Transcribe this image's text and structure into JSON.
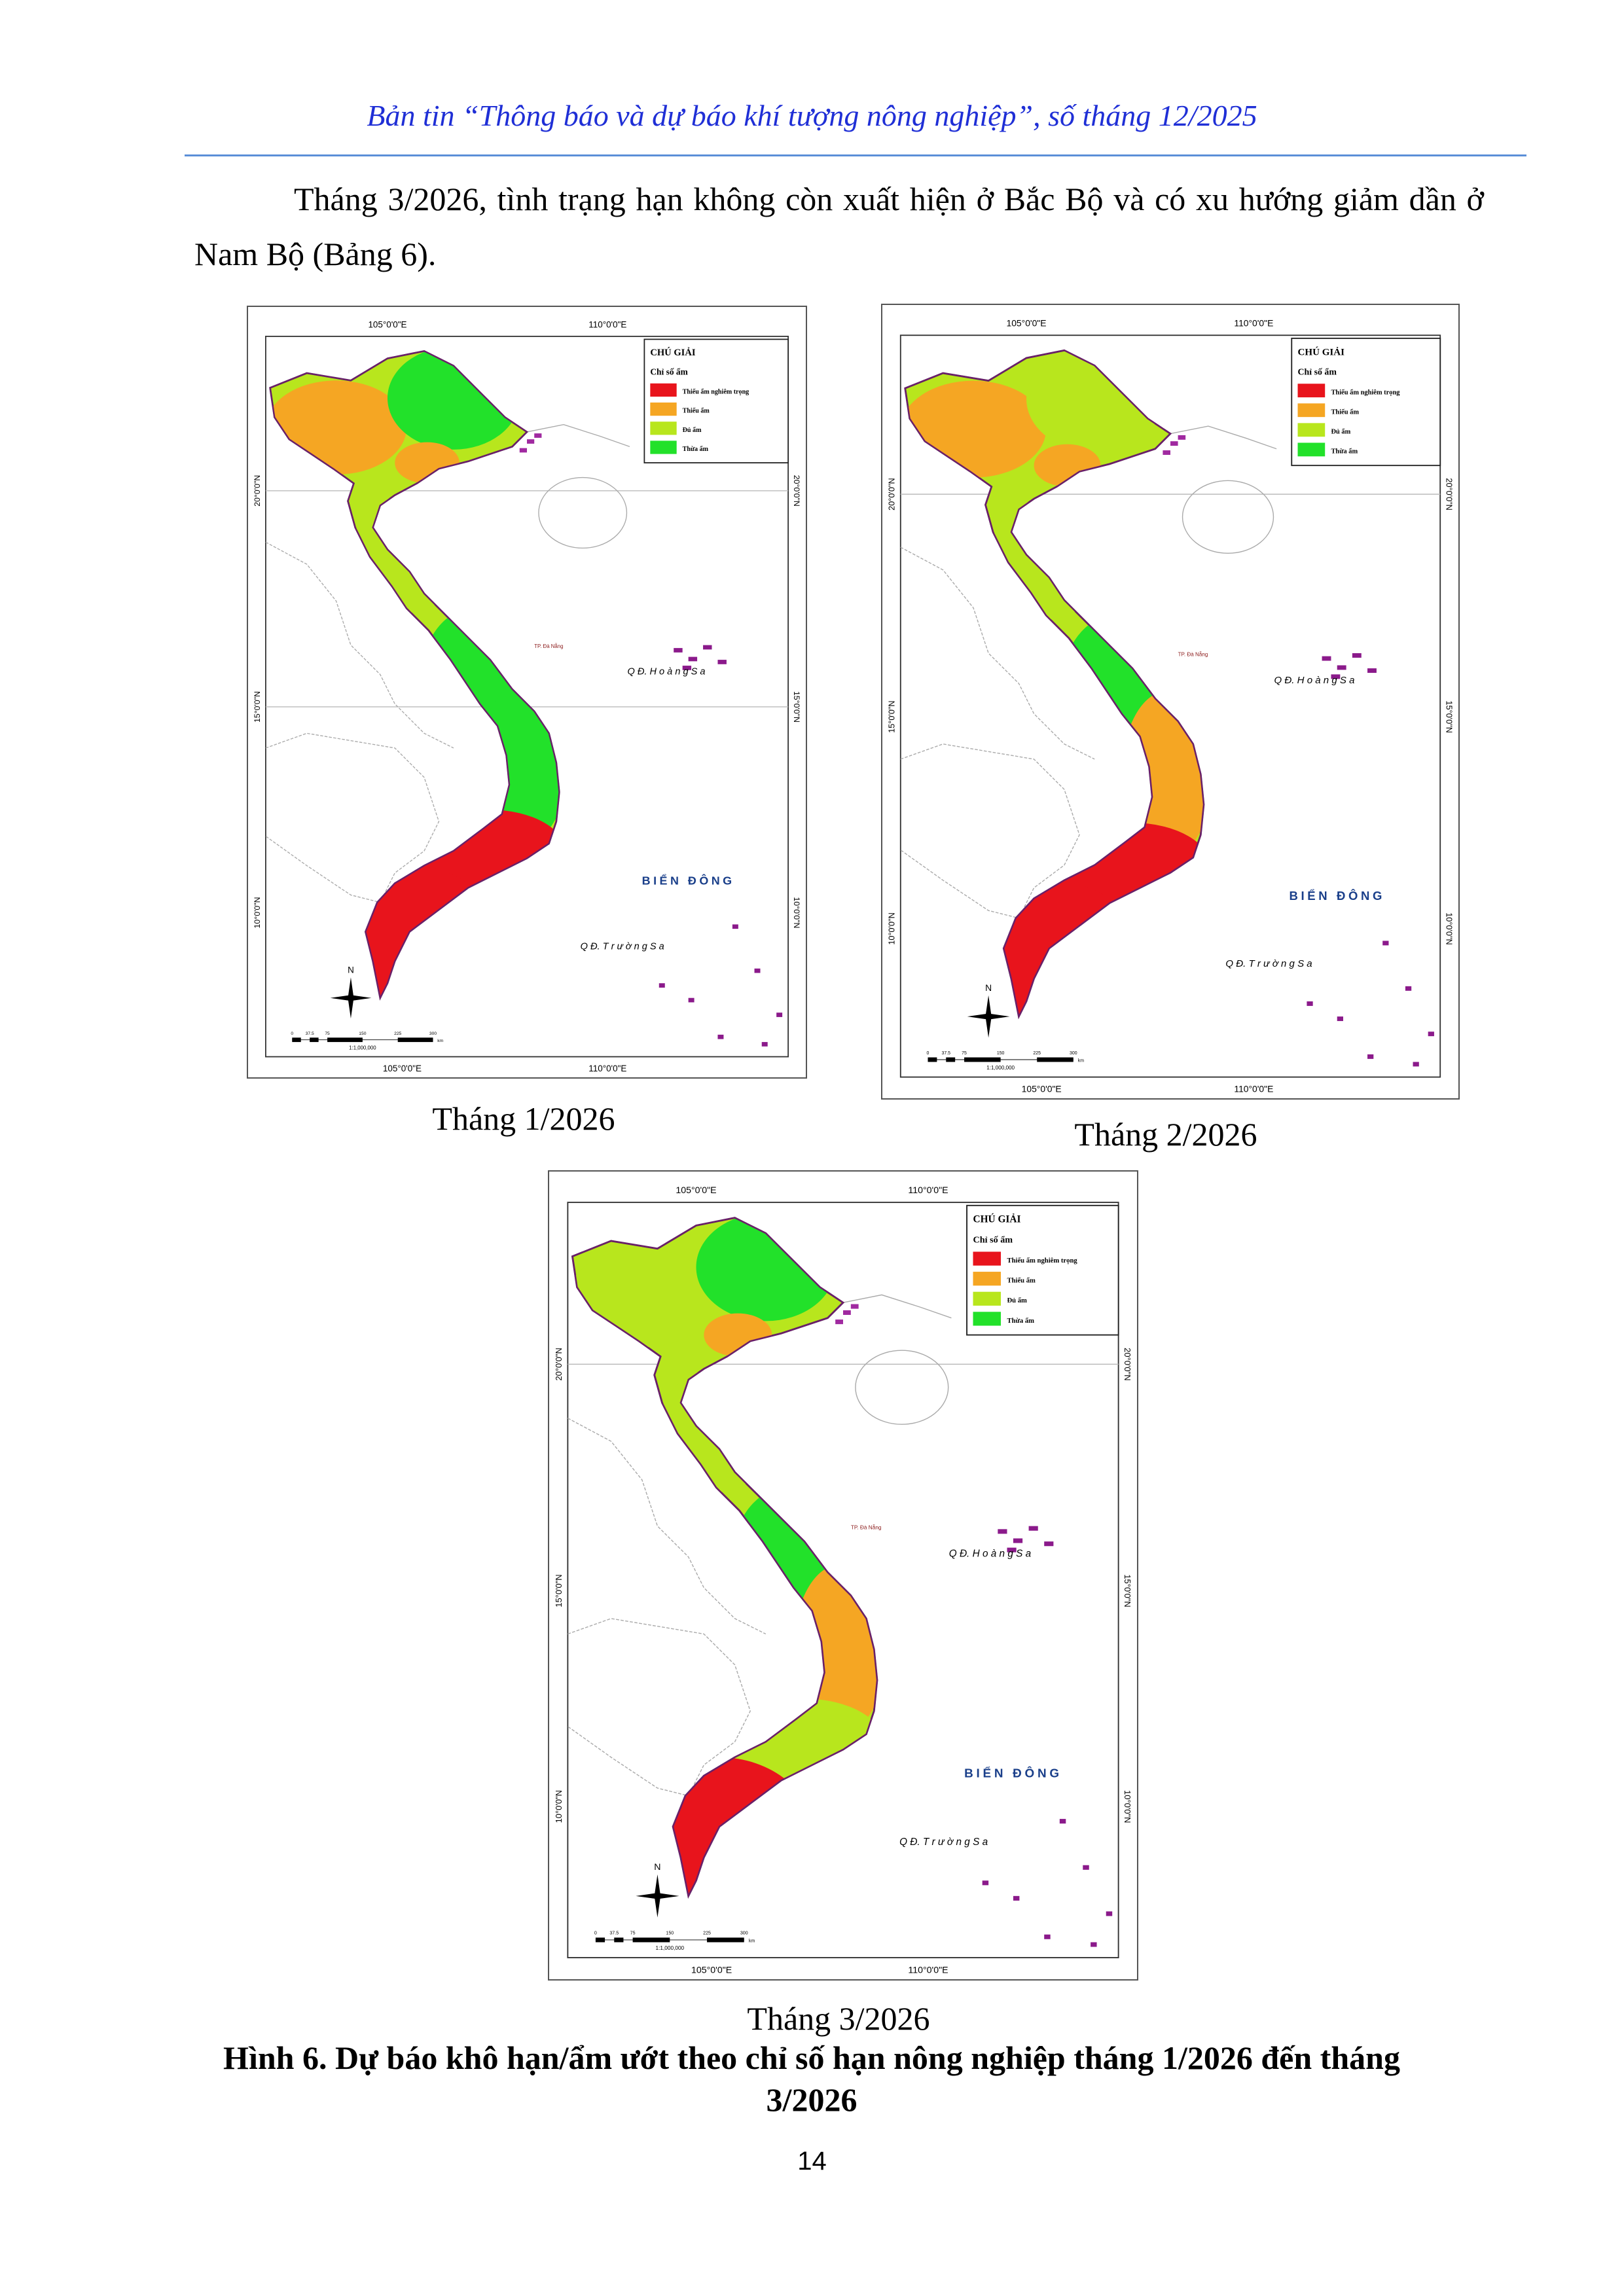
{
  "header": {
    "title": "Bản tin “Thông báo và dự báo khí tượng nông nghiệp”, số tháng 12/2025"
  },
  "paragraph": "Tháng 3/2026, tình trạng hạn không còn xuất hiện ở Bắc Bộ và có xu hướng giảm dần ở Nam Bộ (Bảng 6).",
  "map_common": {
    "lon_labels": [
      "105°0'0\"E",
      "110°0'0\"E"
    ],
    "lat_labels": [
      "20°0'0\"N",
      "15°0'0\"N",
      "10°0'0\"N"
    ],
    "legend": {
      "title": "CHÚ GIẢI",
      "subtitle": "Chỉ số ẩm",
      "items": [
        {
          "label": "Thiếu ẩm nghiêm trọng",
          "color": "#e8141c"
        },
        {
          "label": "Thiếu ẩm",
          "color": "#f5a623"
        },
        {
          "label": "Đủ ẩm",
          "color": "#b8e61d"
        },
        {
          "label": "Thừa ẩm",
          "color": "#22e12a"
        }
      ]
    },
    "sea_label": "BIỂN ĐÔNG",
    "paracel_label": "Q Đ. H o à n g   S a",
    "spratly_label": "Q Đ. T r ư ờ n g   S a",
    "city_label": "TP. Đà Nẵng",
    "north_label": "N",
    "scale_labels": [
      "0",
      "37.5",
      "75",
      "150",
      "225",
      "300"
    ],
    "scale_unit": "km",
    "scale_ratio": "1:1,000,000"
  },
  "maps": [
    {
      "caption": "Tháng 1/2026",
      "zones": {
        "nw": 1,
        "ne": 3,
        "delta": 1,
        "nc": 2,
        "cc": 3,
        "hl": 3,
        "se": 0,
        "mk": 0
      }
    },
    {
      "caption": "Tháng 2/2026",
      "zones": {
        "nw": 1,
        "ne": 2,
        "delta": 1,
        "nc": 2,
        "cc": 3,
        "hl": 1,
        "se": 0,
        "mk": 0
      }
    },
    {
      "caption": "Tháng 3/2026",
      "zones": {
        "nw": 2,
        "ne": 3,
        "delta": 1,
        "nc": 2,
        "cc": 3,
        "hl": 1,
        "se": 2,
        "mk": 0
      }
    }
  ],
  "figure_caption": "Hình 6. Dự báo khô hạn/ẩm ướt theo chỉ số hạn nông nghiệp tháng 1/2026 đến tháng 3/2026",
  "page_number": "14"
}
